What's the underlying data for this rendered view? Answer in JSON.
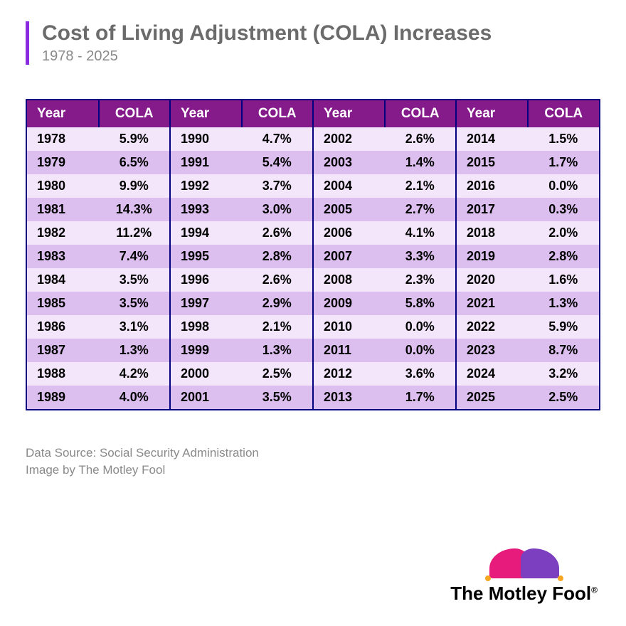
{
  "header": {
    "title": "Cost of Living Adjustment (COLA) Increases",
    "subtitle": "1978 - 2025"
  },
  "table": {
    "header_labels": {
      "year": "Year",
      "cola": "COLA"
    },
    "header_bg": "#851b8a",
    "header_text_color": "#ffffff",
    "border_color": "#000080",
    "row_odd_bg": "#f3e6fb",
    "row_even_bg": "#dcbfef",
    "columns": [
      [
        {
          "year": "1978",
          "cola": "5.9%"
        },
        {
          "year": "1979",
          "cola": "6.5%"
        },
        {
          "year": "1980",
          "cola": "9.9%"
        },
        {
          "year": "1981",
          "cola": "14.3%"
        },
        {
          "year": "1982",
          "cola": "11.2%"
        },
        {
          "year": "1983",
          "cola": "7.4%"
        },
        {
          "year": "1984",
          "cola": "3.5%"
        },
        {
          "year": "1985",
          "cola": "3.5%"
        },
        {
          "year": "1986",
          "cola": "3.1%"
        },
        {
          "year": "1987",
          "cola": "1.3%"
        },
        {
          "year": "1988",
          "cola": "4.2%"
        },
        {
          "year": "1989",
          "cola": "4.0%"
        }
      ],
      [
        {
          "year": "1990",
          "cola": "4.7%"
        },
        {
          "year": "1991",
          "cola": "5.4%"
        },
        {
          "year": "1992",
          "cola": "3.7%"
        },
        {
          "year": "1993",
          "cola": "3.0%"
        },
        {
          "year": "1994",
          "cola": "2.6%"
        },
        {
          "year": "1995",
          "cola": "2.8%"
        },
        {
          "year": "1996",
          "cola": "2.6%"
        },
        {
          "year": "1997",
          "cola": "2.9%"
        },
        {
          "year": "1998",
          "cola": "2.1%"
        },
        {
          "year": "1999",
          "cola": "1.3%"
        },
        {
          "year": "2000",
          "cola": "2.5%"
        },
        {
          "year": "2001",
          "cola": "3.5%"
        }
      ],
      [
        {
          "year": "2002",
          "cola": "2.6%"
        },
        {
          "year": "2003",
          "cola": "1.4%"
        },
        {
          "year": "2004",
          "cola": "2.1%"
        },
        {
          "year": "2005",
          "cola": "2.7%"
        },
        {
          "year": "2006",
          "cola": "4.1%"
        },
        {
          "year": "2007",
          "cola": "3.3%"
        },
        {
          "year": "2008",
          "cola": "2.3%"
        },
        {
          "year": "2009",
          "cola": "5.8%"
        },
        {
          "year": "2010",
          "cola": "0.0%"
        },
        {
          "year": "2011",
          "cola": "0.0%"
        },
        {
          "year": "2012",
          "cola": "3.6%"
        },
        {
          "year": "2013",
          "cola": "1.7%"
        }
      ],
      [
        {
          "year": "2014",
          "cola": "1.5%"
        },
        {
          "year": "2015",
          "cola": "1.7%"
        },
        {
          "year": "2016",
          "cola": "0.0%"
        },
        {
          "year": "2017",
          "cola": "0.3%"
        },
        {
          "year": "2018",
          "cola": "2.0%"
        },
        {
          "year": "2019",
          "cola": "2.8%"
        },
        {
          "year": "2020",
          "cola": "1.6%"
        },
        {
          "year": "2021",
          "cola": "1.3%"
        },
        {
          "year": "2022",
          "cola": "5.9%"
        },
        {
          "year": "2023",
          "cola": "8.7%"
        },
        {
          "year": "2024",
          "cola": "3.2%"
        },
        {
          "year": "2025",
          "cola": "2.5%"
        }
      ]
    ]
  },
  "footer": {
    "source": "Data Source: Social Security Administration",
    "credit": "Image by The Motley Fool"
  },
  "logo": {
    "text": "The Motley Fool",
    "reg": "®",
    "colors": {
      "left": "#e61b7b",
      "right": "#7b3fbf",
      "bell": "#f5a623"
    }
  }
}
